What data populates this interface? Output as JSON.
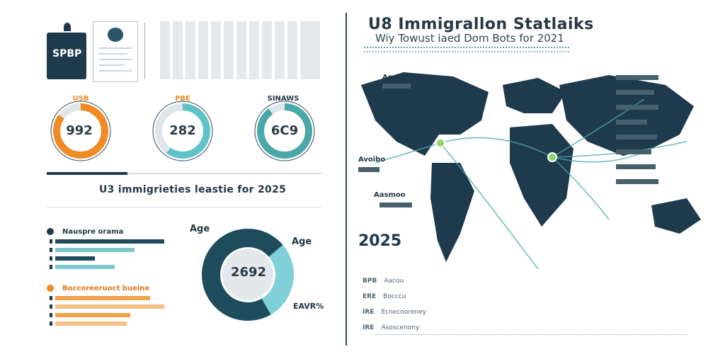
{
  "left": {
    "passport_label": "SPBP",
    "rings": [
      {
        "label": "USB",
        "value": "992",
        "color": "#f08a24",
        "fraction": 0.85
      },
      {
        "label": "PBE",
        "value": "282",
        "color": "#5fc2c7",
        "fraction": 0.6
      },
      {
        "label": "SINAWS",
        "value": "6C9",
        "color": "#4aa9a8",
        "fraction": 0.9
      }
    ],
    "subtitle": "U3 immigrieties leastie for 2025",
    "legend_groups": [
      {
        "title": "Nauspre orama",
        "color": "#1f4c5c",
        "bars": [
          0.55,
          0.4,
          0.2,
          0.3
        ]
      },
      {
        "title": "Boccoreeruoct bueine",
        "color": "#f2a24a",
        "bars": [
          0.48,
          0.55,
          0.38,
          0.36
        ]
      }
    ],
    "donut": {
      "value": "2692",
      "label_top": "Age",
      "label_right": "Age",
      "label_bottom": "EAVR%",
      "fraction": 0.72
    }
  },
  "right": {
    "title": "U8 Immigrallon Statlaiks",
    "subtitle": "Wiy Towust iaed Dom Bots for 2021",
    "year": "2025",
    "map_labels": [
      {
        "text": "Accoo"
      },
      {
        "text": "Avoibo"
      },
      {
        "text": "Aasmoo"
      }
    ],
    "stat_rows": [
      {
        "code": "BPB",
        "text": "Aacou"
      },
      {
        "code": "ERE",
        "text": "Bocccu"
      },
      {
        "code": "IRE",
        "text": "Ecnecnoreney"
      },
      {
        "code": "IRE",
        "text": "Asoscenony"
      }
    ]
  }
}
